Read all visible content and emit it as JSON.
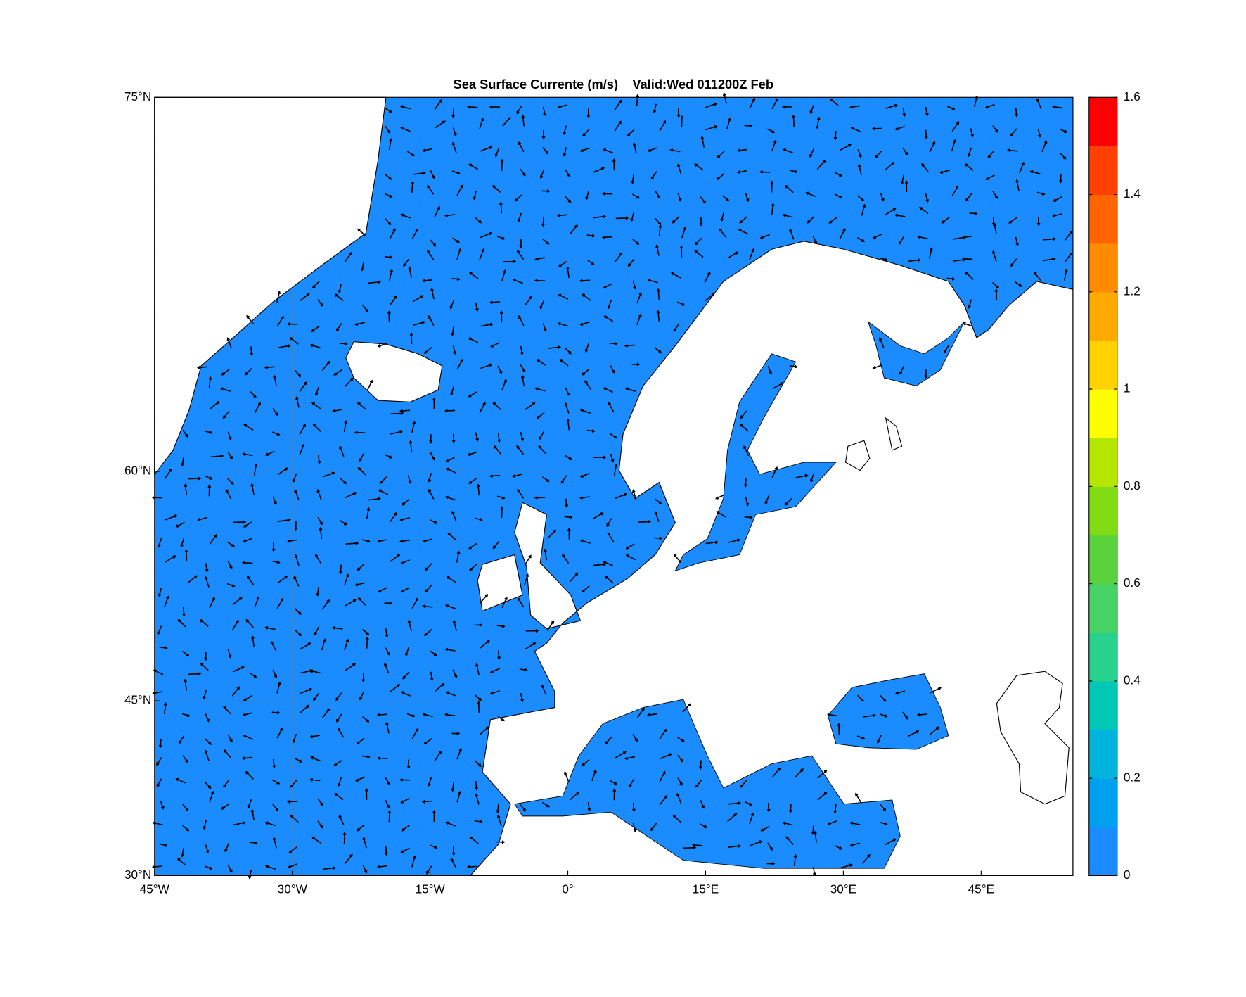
{
  "title": "Sea Surface Currente (m/s)    Valid:Wed 011200Z Feb",
  "map": {
    "projection": "mercator",
    "grid": true,
    "xlim": [
      -45,
      55
    ],
    "ylim": [
      30,
      75
    ],
    "xticks": [
      {
        "value": -45,
        "label": "45°W"
      },
      {
        "value": -30,
        "label": "30°W"
      },
      {
        "value": -15,
        "label": "15°W"
      },
      {
        "value": 0,
        "label": "0°"
      },
      {
        "value": 15,
        "label": "15°E"
      },
      {
        "value": 30,
        "label": "30°E"
      },
      {
        "value": 45,
        "label": "45°E"
      }
    ],
    "yticks": [
      {
        "value": 30,
        "label": "30°N"
      },
      {
        "value": 45,
        "label": "45°N"
      },
      {
        "value": 60,
        "label": "60°N"
      },
      {
        "value": 75,
        "label": "75°N"
      }
    ]
  },
  "colorbar": {
    "clim": [
      0,
      1.6
    ],
    "ticks": [
      0,
      0.2,
      0.4,
      0.6,
      0.8,
      1,
      1.2,
      1.4,
      1.6
    ],
    "colors": [
      "#1a8cff",
      "#00a0f0",
      "#00b4dc",
      "#00c8b4",
      "#28d28c",
      "#46d264",
      "#5ad23c",
      "#82dc14",
      "#b4e600",
      "#ffff00",
      "#ffd200",
      "#ffaa00",
      "#ff8c00",
      "#ff6400",
      "#ff4000",
      "#ff0000"
    ]
  }
}
